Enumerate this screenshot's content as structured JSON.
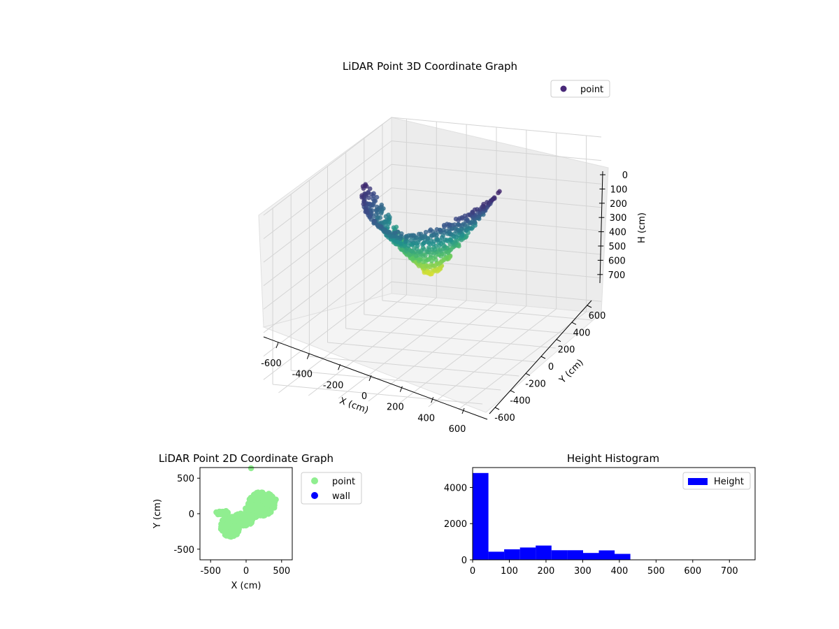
{
  "colors": {
    "bar": "#0000ff",
    "point2d": "#90ee90",
    "wall": "#0000ff",
    "viridis": [
      "#440154",
      "#3b528b",
      "#21918c",
      "#5ec962",
      "#fde725"
    ],
    "pane": "#f2f2f2",
    "grid": "#d9d9d9"
  },
  "chart_data": [
    {
      "type": "scatter3d",
      "title": "LiDAR Point 3D Coordinate Graph",
      "xlabel": "X (cm)",
      "ylabel": "Y (cm)",
      "zlabel": "H (cm)",
      "xlim": [
        -700,
        700
      ],
      "ylim": [
        -700,
        700
      ],
      "zlim": [
        0,
        750
      ],
      "z_inverted": true,
      "x_ticks": [
        "-600",
        "-400",
        "-200",
        "0",
        "200",
        "400",
        "600"
      ],
      "y_ticks": [
        "-600",
        "-400",
        "-200",
        "0",
        "200",
        "400",
        "600"
      ],
      "z_ticks": [
        "0",
        "100",
        "200",
        "300",
        "400",
        "500",
        "600",
        "700"
      ],
      "colormap": "viridis",
      "legend": [
        {
          "name": "point",
          "marker": "circle"
        }
      ],
      "legend_position": "upper-right",
      "series": [
        {
          "name": "point",
          "shape": "bowl",
          "rings": [
            {
              "radius": 420,
              "height": 440
            },
            {
              "radius": 380,
              "height": 400
            },
            {
              "radius": 330,
              "height": 350
            },
            {
              "radius": 280,
              "height": 300
            },
            {
              "radius": 230,
              "height": 250
            },
            {
              "radius": 180,
              "height": 190
            },
            {
              "radius": 120,
              "height": 130
            },
            {
              "radius": 60,
              "height": 60
            }
          ]
        }
      ],
      "grid": true
    },
    {
      "type": "scatter",
      "title": "LiDAR Point 2D Coordinate Graph",
      "xlabel": "X (cm)",
      "ylabel": "Y (cm)",
      "xlim": [
        -650,
        650
      ],
      "ylim": [
        -650,
        650
      ],
      "x_ticks": [
        "-500",
        "0",
        "500"
      ],
      "y_ticks": [
        "-500",
        "0",
        "500"
      ],
      "legend": [
        {
          "name": "point",
          "color": "#90ee90"
        },
        {
          "name": "wall",
          "color": "#0000ff"
        }
      ],
      "legend_position": "outside-right",
      "series": [
        {
          "name": "point",
          "clusters": [
            {
              "cx": 220,
              "cy": 140,
              "rx": 190,
              "ry": 170,
              "n": 230
            },
            {
              "cx": 120,
              "cy": 40,
              "rx": 140,
              "ry": 90,
              "n": 90
            },
            {
              "cx": -40,
              "cy": -80,
              "rx": 140,
              "ry": 90,
              "n": 110
            },
            {
              "cx": -220,
              "cy": -180,
              "rx": 140,
              "ry": 150,
              "n": 150
            },
            {
              "cx": -330,
              "cy": 10,
              "rx": 90,
              "ry": 35,
              "n": 40
            }
          ],
          "points": [
            [
              70,
              640
            ],
            [
              420,
              200
            ],
            [
              400,
              120
            ],
            [
              -420,
              20
            ]
          ]
        },
        {
          "name": "wall",
          "points": []
        }
      ]
    },
    {
      "type": "bar",
      "title": "Height Histogram",
      "xlabel": "",
      "ylabel": "",
      "xlim": [
        0,
        770
      ],
      "ylim": [
        0,
        5100
      ],
      "x_ticks": [
        "0",
        "100",
        "200",
        "300",
        "400",
        "500",
        "600",
        "700"
      ],
      "y_ticks": [
        "0",
        "2000",
        "4000"
      ],
      "bin_width": 43,
      "bins": [
        {
          "start": 0,
          "count": 4800
        },
        {
          "start": 43,
          "count": 450
        },
        {
          "start": 86,
          "count": 580
        },
        {
          "start": 129,
          "count": 680
        },
        {
          "start": 172,
          "count": 790
        },
        {
          "start": 215,
          "count": 530
        },
        {
          "start": 258,
          "count": 530
        },
        {
          "start": 301,
          "count": 380
        },
        {
          "start": 344,
          "count": 520
        },
        {
          "start": 387,
          "count": 330
        }
      ],
      "legend": [
        {
          "name": "Height"
        }
      ],
      "legend_position": "upper-right"
    }
  ]
}
